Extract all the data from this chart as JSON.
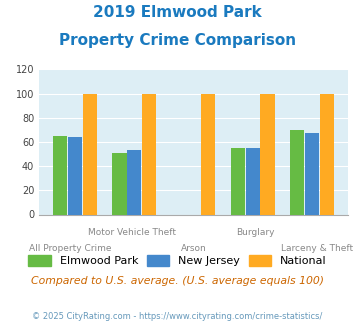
{
  "title_line1": "2019 Elmwood Park",
  "title_line2": "Property Crime Comparison",
  "title_color": "#1a7abf",
  "categories": [
    "All Property Crime",
    "Motor Vehicle Theft",
    "Arson",
    "Burglary",
    "Larceny & Theft"
  ],
  "cat_line1": [
    "",
    "Motor Vehicle Theft",
    "",
    "Burglary",
    ""
  ],
  "cat_line2": [
    "All Property Crime",
    "",
    "Arson",
    "",
    "Larceny & Theft"
  ],
  "elmwood_values": [
    65,
    51,
    0,
    55,
    70
  ],
  "nj_values": [
    64,
    53,
    0,
    55,
    67
  ],
  "national_values": [
    100,
    100,
    100,
    100,
    100
  ],
  "elmwood_color": "#66bb44",
  "nj_color": "#4488cc",
  "national_color": "#ffaa22",
  "ylim": [
    0,
    120
  ],
  "yticks": [
    0,
    20,
    40,
    60,
    80,
    100,
    120
  ],
  "bg_color": "#ddeef5",
  "legend_labels": [
    "Elmwood Park",
    "New Jersey",
    "National"
  ],
  "note_text": "Compared to U.S. average. (U.S. average equals 100)",
  "note_color": "#cc6600",
  "footer_text": "© 2025 CityRating.com - https://www.cityrating.com/crime-statistics/",
  "footer_color": "#6699bb"
}
